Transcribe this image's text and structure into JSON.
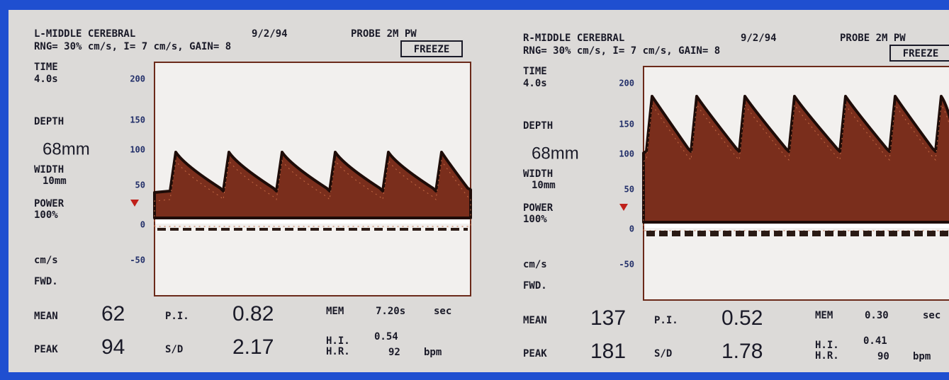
{
  "panels": [
    {
      "vessel": "L-MIDDLE CEREBRAL",
      "date": "9/2/94",
      "probe": "PROBE 2M PW",
      "settings": "RNG= 30% cm/s, I= 7 cm/s, GAIN= 8",
      "mode": "FREEZE",
      "time_label": "TIME",
      "time_value": "4.0s",
      "depth_label": "DEPTH",
      "depth_value": "68mm",
      "width_label": "WIDTH",
      "width_value": "10mm",
      "power_label": "POWER",
      "power_value": "100%",
      "unit_label": "cm/s",
      "direction": "FWD.",
      "scale": [
        "200",
        "150",
        "100",
        "50",
        "0",
        "-50"
      ],
      "mean_label": "MEAN",
      "mean": "62",
      "peak_label": "PEAK",
      "peak": "94",
      "pi_label": "P.I.",
      "pi": "0.82",
      "sd_label": "S/D",
      "sd": "2.17",
      "mem_label": "MEM",
      "mem": "7.20s",
      "mem_unit": "sec",
      "hi_label": "H.I.",
      "hi": "0.54",
      "hr_label": "H.R.",
      "hr": "92",
      "hr_unit": "bpm"
    },
    {
      "vessel": "R-MIDDLE CEREBRAL",
      "date": "9/2/94",
      "probe": "PROBE 2M PW",
      "settings": "RNG= 30% cm/s, I= 7 cm/s, GAIN= 8",
      "mode": "FREEZE",
      "time_label": "TIME",
      "time_value": "4.0s",
      "depth_label": "DEPTH",
      "depth_value": "68mm",
      "width_label": "WIDTH",
      "width_value": "10mm",
      "power_label": "POWER",
      "power_value": "100%",
      "unit_label": "cm/s",
      "direction": "FWD.",
      "scale": [
        "200",
        "150",
        "100",
        "50",
        "0",
        "-50"
      ],
      "mean_label": "MEAN",
      "mean": "137",
      "peak_label": "PEAK",
      "peak": "181",
      "pi_label": "P.I.",
      "pi": "0.52",
      "sd_label": "S/D",
      "sd": "1.78",
      "mem_label": "MEM",
      "mem": "0.30",
      "mem_unit": "sec",
      "hi_label": "H.I.",
      "hi": "0.41",
      "hr_label": "H.R.",
      "hr": "90",
      "hr_unit": "bpm"
    }
  ]
}
